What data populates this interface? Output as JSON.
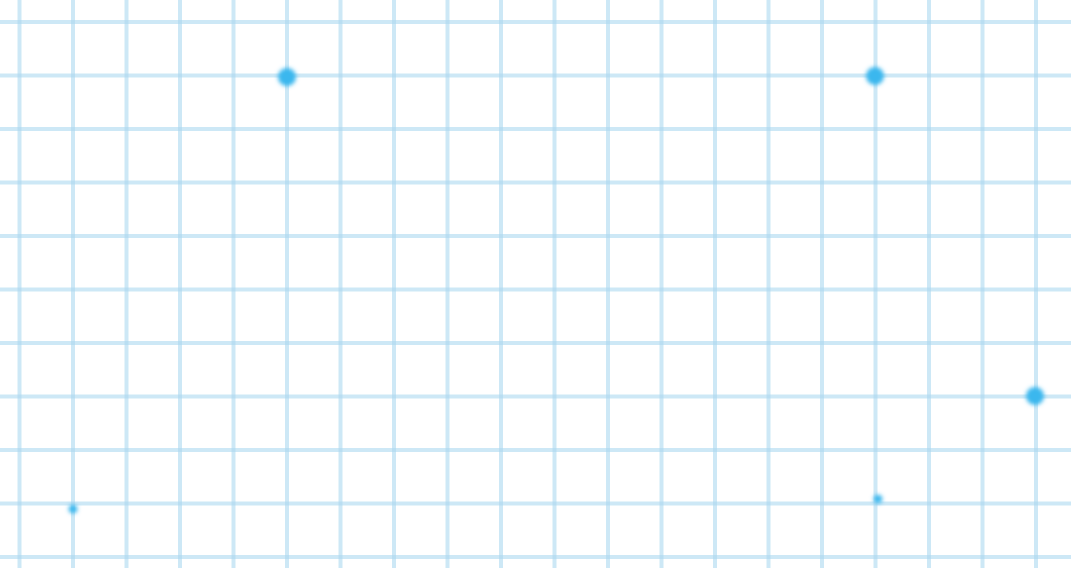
{
  "background": {
    "color": "#ffffff",
    "grid_color": "#cde8f6",
    "grid_intersection_color": "#b9def2",
    "dot_color": "#3ab7ee"
  },
  "grid": {
    "columns": 20,
    "rows": 11
  },
  "highlights": [
    {
      "name": "glow-dot",
      "size": "large"
    },
    {
      "name": "glow-dot",
      "size": "large"
    },
    {
      "name": "glow-dot",
      "size": "large"
    },
    {
      "name": "glow-dot",
      "size": "small"
    },
    {
      "name": "glow-dot",
      "size": "small"
    }
  ]
}
